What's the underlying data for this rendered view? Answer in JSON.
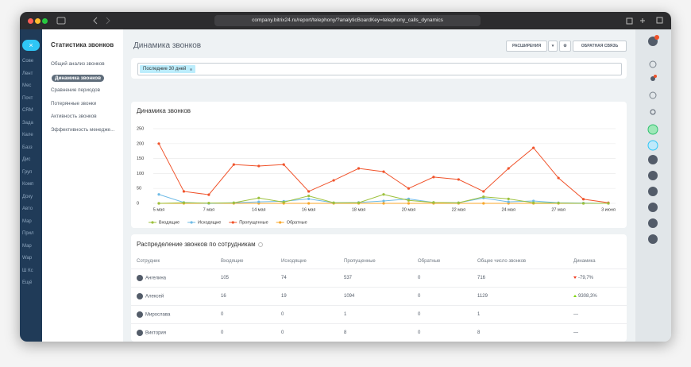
{
  "browser": {
    "url": "company.bitrix24.ru/report/telephony/?analyticBoardKey=telephony_calls_dynamics"
  },
  "left_menu": [
    "Сове",
    "Лент",
    "Мес",
    "Почт",
    "CRM",
    "Зада",
    "Кале",
    "Базз",
    "Дис",
    "Груп",
    "Комп",
    "Доку",
    "Авто",
    "Мар",
    "Прил",
    "Мар",
    "Wap",
    "Ш Кс",
    "Ещё"
  ],
  "section_menu": {
    "title": "Статистика звонков",
    "items": [
      "Общий анализ звонков",
      "Динамика звонков",
      "Сравнение периодов",
      "Потерянные звонки",
      "Активность звонков",
      "Эффективность менедже..."
    ],
    "active": 1
  },
  "page": {
    "title": "Динамика звонков",
    "buttons": [
      "РАСШИРЕНИЯ",
      "ОБРАТНАЯ СВЯЗЬ"
    ],
    "filter_tag": "Последние 30 дней"
  },
  "chart_data": {
    "type": "line",
    "title": "Динамика звонков",
    "categories": [
      "5 мая",
      null,
      "7 мая",
      null,
      "14 мая",
      null,
      "16 мая",
      null,
      "18 мая",
      null,
      "20 мая",
      null,
      "22 мая",
      null,
      "24 мая",
      null,
      "27 мая",
      null,
      "3 июня"
    ],
    "series": [
      {
        "name": "Входящие",
        "color": "#9cc13c",
        "values": [
          0,
          2,
          1,
          2,
          18,
          4,
          25,
          2,
          2,
          30,
          10,
          3,
          2,
          22,
          15,
          2,
          1,
          0,
          0
        ]
      },
      {
        "name": "Исходящие",
        "color": "#6fbbe6",
        "values": [
          30,
          3,
          0,
          2,
          5,
          7,
          15,
          2,
          3,
          8,
          15,
          3,
          2,
          18,
          5,
          8,
          2,
          1,
          0
        ]
      },
      {
        "name": "Пропущенные",
        "color": "#f0532b",
        "values": [
          200,
          40,
          29,
          130,
          125,
          130,
          40,
          77,
          117,
          106,
          50,
          88,
          80,
          40,
          117,
          186,
          85,
          14,
          2
        ]
      },
      {
        "name": "Обратные",
        "color": "#f8a72a",
        "values": [
          0,
          0,
          0,
          0,
          0,
          0,
          0,
          0,
          0,
          0,
          0,
          0,
          0,
          0,
          0,
          0,
          0,
          0,
          0
        ]
      }
    ],
    "ylim": [
      0,
      250
    ],
    "yticks": [
      0,
      50,
      100,
      150,
      200,
      250
    ],
    "grid": true,
    "legend": "bottom"
  },
  "table": {
    "title": "Распределение звонков по сотрудникам",
    "columns": [
      "Сотрудник",
      "Входящие",
      "Исходящие",
      "Пропущенные",
      "Обратные",
      "Общее число звонков",
      "Динамика"
    ],
    "rows": [
      [
        "Ангелина",
        105,
        74,
        537,
        0,
        716,
        "-79,7%"
      ],
      [
        "Алексей",
        16,
        19,
        1094,
        0,
        1129,
        "9308,3%"
      ],
      [
        "Мирослава",
        0,
        0,
        1,
        0,
        1,
        "—"
      ],
      [
        "Виктория",
        0,
        0,
        8,
        0,
        8,
        "—"
      ]
    ],
    "trends": [
      "down",
      "up",
      null,
      null
    ]
  }
}
